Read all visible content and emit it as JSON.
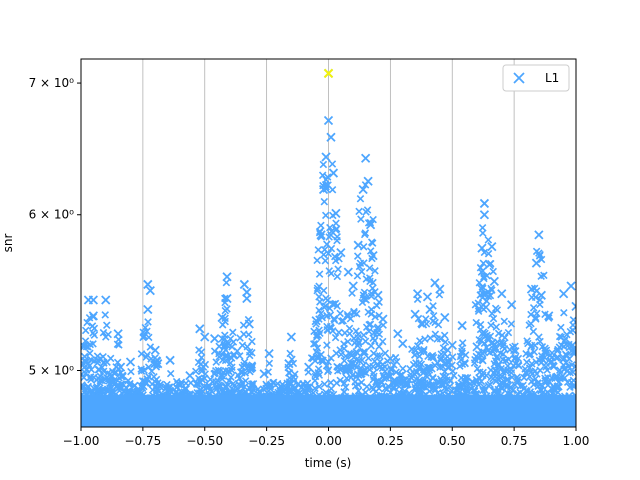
{
  "chart_data": {
    "type": "scatter",
    "xlabel": "time (s)",
    "ylabel": "snr",
    "xlim": [
      -1.0,
      1.0
    ],
    "ylim": [
      4.68,
      7.2
    ],
    "y_scale": "log",
    "grid": "vertical",
    "x_ticks": [
      -1.0,
      -0.75,
      -0.5,
      -0.25,
      0.0,
      0.25,
      0.5,
      0.75,
      1.0
    ],
    "x_tick_labels": [
      "−1.00",
      "−0.75",
      "−0.50",
      "−0.25",
      "0.00",
      "0.25",
      "0.50",
      "0.75",
      "1.00"
    ],
    "y_ticks": [
      5,
      6,
      7
    ],
    "y_tick_labels": [
      "5 × 10⁰",
      "6 × 10⁰",
      "7 × 10⁰"
    ],
    "marker": "x",
    "legend_position": "top-right",
    "series": [
      {
        "name": "L1",
        "color": "#4da6ff",
        "points": [
          [
            -0.97,
            5.43
          ],
          [
            -0.95,
            5.43
          ],
          [
            -0.95,
            5.33
          ],
          [
            -0.9,
            5.43
          ],
          [
            -0.85,
            5.22
          ],
          [
            -0.84,
            5.02
          ],
          [
            -0.8,
            5.05
          ],
          [
            -0.73,
            5.53
          ],
          [
            -0.73,
            5.37
          ],
          [
            -0.72,
            5.49
          ],
          [
            -0.7,
            5.12
          ],
          [
            -0.69,
            5.04
          ],
          [
            -0.64,
            5.06
          ],
          [
            -0.56,
            4.97
          ],
          [
            -0.52,
            5.25
          ],
          [
            -0.5,
            5.2
          ],
          [
            -0.46,
            5.19
          ],
          [
            -0.43,
            5.32
          ],
          [
            -0.41,
            5.58
          ],
          [
            -0.41,
            5.44
          ],
          [
            -0.34,
            5.53
          ],
          [
            -0.33,
            5.48
          ],
          [
            -0.33,
            5.44
          ],
          [
            -0.32,
            5.28
          ],
          [
            -0.31,
            5.02
          ],
          [
            -0.26,
            4.98
          ],
          [
            -0.24,
            5.1
          ],
          [
            -0.16,
            5.04
          ],
          [
            -0.15,
            5.2
          ],
          [
            -0.11,
            4.9
          ],
          [
            -0.08,
            5.02
          ],
          [
            -0.05,
            5.3
          ],
          [
            -0.03,
            5.86
          ],
          [
            -0.02,
            6.18
          ],
          [
            -0.01,
            6.42
          ],
          [
            0.0,
            6.7
          ],
          [
            0.0,
            7.08
          ],
          [
            0.01,
            6.57
          ],
          [
            0.02,
            6.3
          ],
          [
            0.03,
            6.01
          ],
          [
            0.05,
            5.74
          ],
          [
            0.08,
            5.61
          ],
          [
            0.1,
            5.52
          ],
          [
            0.12,
            5.79
          ],
          [
            0.14,
            6.18
          ],
          [
            0.15,
            6.41
          ],
          [
            0.16,
            6.24
          ],
          [
            0.17,
            5.93
          ],
          [
            0.18,
            5.72
          ],
          [
            0.2,
            5.46
          ],
          [
            0.22,
            5.31
          ],
          [
            0.25,
            5.07
          ],
          [
            0.28,
            5.22
          ],
          [
            0.3,
            5.16
          ],
          [
            0.35,
            5.34
          ],
          [
            0.36,
            5.47
          ],
          [
            0.38,
            5.28
          ],
          [
            0.4,
            5.45
          ],
          [
            0.41,
            5.37
          ],
          [
            0.43,
            5.54
          ],
          [
            0.45,
            5.5
          ],
          [
            0.47,
            5.32
          ],
          [
            0.5,
            5.15
          ],
          [
            0.54,
            5.27
          ],
          [
            0.6,
            5.14
          ],
          [
            0.62,
            5.5
          ],
          [
            0.62,
            5.77
          ],
          [
            0.63,
            6.0
          ],
          [
            0.63,
            6.08
          ],
          [
            0.65,
            5.66
          ],
          [
            0.66,
            5.78
          ],
          [
            0.67,
            5.55
          ],
          [
            0.7,
            5.47
          ],
          [
            0.74,
            5.4
          ],
          [
            0.82,
            5.5
          ],
          [
            0.84,
            5.67
          ],
          [
            0.85,
            5.86
          ],
          [
            0.86,
            5.46
          ],
          [
            0.89,
            5.33
          ],
          [
            0.95,
            5.47
          ],
          [
            0.98,
            5.52
          ],
          [
            1.0,
            5.39
          ]
        ]
      }
    ],
    "highlight": {
      "x": 0.0,
      "y": 7.08,
      "color": "#f2f20d"
    }
  },
  "legend": {
    "label": "L1"
  }
}
